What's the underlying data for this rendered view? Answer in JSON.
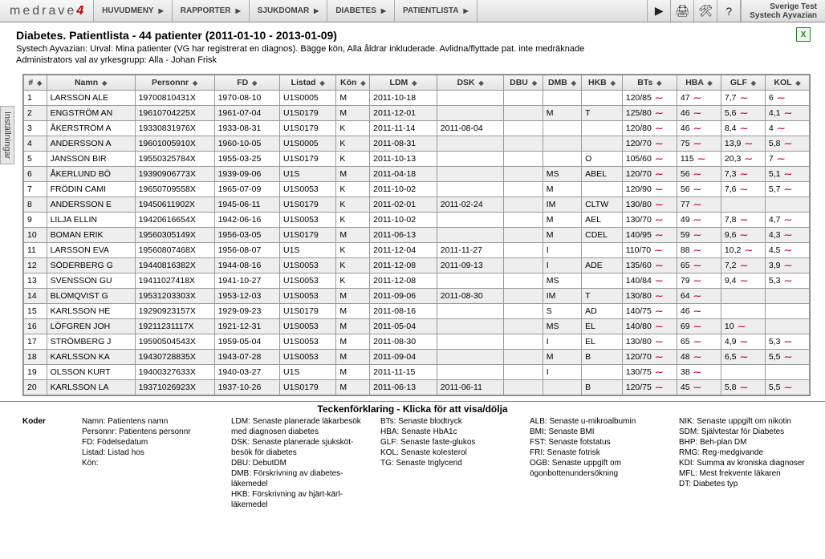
{
  "logo": {
    "text": "medrave",
    "suffix": "4"
  },
  "breadcrumbs": [
    "HUVUDMENY",
    "RAPPORTER",
    "SJUKDOMAR",
    "DIABETES",
    "PATIENTLISTA"
  ],
  "toolbar_icons": [
    {
      "name": "play-icon",
      "glyph": "▶"
    },
    {
      "name": "print-icon",
      "glyph": "🖨"
    },
    {
      "name": "settings-icon",
      "glyph": "🛠"
    },
    {
      "name": "help-icon",
      "glyph": "?"
    }
  ],
  "user": {
    "line1": "Sverige Test",
    "line2": "Systech Ayvazian"
  },
  "header": {
    "title": "Diabetes. Patientlista - 44 patienter (2011-01-10 - 2013-01-09)",
    "sub1": "Systech Ayvazian: Urval: Mina patienter (VG har registrerat en diagnos). Bägge kön, Alla åldrar inkluderade. Avlidna/flyttade pat. inte medräknade",
    "sub2": "Administrators val av yrkesgrupp: Alla - Johan Frisk"
  },
  "excel_label": "X",
  "sidetab": "Inställningar",
  "columns": [
    {
      "key": "num",
      "label": "#",
      "cls": "c-num"
    },
    {
      "key": "namn",
      "label": "Namn",
      "cls": "c-namn"
    },
    {
      "key": "personnr",
      "label": "Personnr",
      "cls": "c-pnr"
    },
    {
      "key": "fd",
      "label": "FD",
      "cls": "c-fd"
    },
    {
      "key": "listad",
      "label": "Listad",
      "cls": "c-listad"
    },
    {
      "key": "kon",
      "label": "Kön",
      "cls": "c-kon"
    },
    {
      "key": "ldm",
      "label": "LDM",
      "cls": "c-ldm"
    },
    {
      "key": "dsk",
      "label": "DSK",
      "cls": "c-dsk"
    },
    {
      "key": "dbu",
      "label": "DBU",
      "cls": "c-dbu"
    },
    {
      "key": "dmb",
      "label": "DMB",
      "cls": "c-dmb"
    },
    {
      "key": "hkb",
      "label": "HKB",
      "cls": "c-hkb"
    },
    {
      "key": "bts",
      "label": "BTs",
      "cls": "c-bts",
      "spark": true
    },
    {
      "key": "hba",
      "label": "HBA",
      "cls": "c-hba",
      "spark": true
    },
    {
      "key": "glf",
      "label": "GLF",
      "cls": "c-glf",
      "spark": true
    },
    {
      "key": "kol",
      "label": "KOL",
      "cls": "c-kol",
      "spark": true
    }
  ],
  "rows": [
    {
      "num": "1",
      "namn": "LARSSON ALE",
      "personnr": "19700810431X",
      "fd": "1970-08-10",
      "listad": "U1S0005",
      "kon": "M",
      "ldm": "2011-10-18",
      "dsk": "",
      "dbu": "",
      "dmb": "",
      "hkb": "",
      "bts": "120/85",
      "hba": "47",
      "glf": "7,7",
      "kol": "6"
    },
    {
      "num": "2",
      "namn": "ENGSTRÖM AN",
      "personnr": "19610704225X",
      "fd": "1961-07-04",
      "listad": "U1S0179",
      "kon": "M",
      "ldm": "2011-12-01",
      "dsk": "",
      "dbu": "",
      "dmb": "M",
      "hkb": "T",
      "bts": "125/80",
      "hba": "46",
      "glf": "5,6",
      "kol": "4,1"
    },
    {
      "num": "3",
      "namn": "ÅKERSTRÖM A",
      "personnr": "19330831976X",
      "fd": "1933-08-31",
      "listad": "U1S0179",
      "kon": "K",
      "ldm": "2011-11-14",
      "dsk": "2011-08-04",
      "dbu": "",
      "dmb": "",
      "hkb": "",
      "bts": "120/80",
      "hba": "46",
      "glf": "8,4",
      "kol": "4"
    },
    {
      "num": "4",
      "namn": "ANDERSSON A",
      "personnr": "19601005910X",
      "fd": "1960-10-05",
      "listad": "U1S0005",
      "kon": "K",
      "ldm": "2011-08-31",
      "dsk": "",
      "dbu": "",
      "dmb": "",
      "hkb": "",
      "bts": "120/70",
      "hba": "75",
      "glf": "13,9",
      "kol": "5,8"
    },
    {
      "num": "5",
      "namn": "JANSSON BIR",
      "personnr": "19550325784X",
      "fd": "1955-03-25",
      "listad": "U1S0179",
      "kon": "K",
      "ldm": "2011-10-13",
      "dsk": "",
      "dbu": "",
      "dmb": "",
      "hkb": "O",
      "bts": "105/60",
      "hba": "115",
      "glf": "20,3",
      "kol": "7"
    },
    {
      "num": "6",
      "namn": "ÅKERLUND BÖ",
      "personnr": "19390906773X",
      "fd": "1939-09-06",
      "listad": "U1S",
      "kon": "M",
      "ldm": "2011-04-18",
      "dsk": "",
      "dbu": "",
      "dmb": "MS",
      "hkb": "ABEL",
      "bts": "120/70",
      "hba": "56",
      "glf": "7,3",
      "kol": "5,1"
    },
    {
      "num": "7",
      "namn": "FRÖDIN CAMI",
      "personnr": "19650709558X",
      "fd": "1965-07-09",
      "listad": "U1S0053",
      "kon": "K",
      "ldm": "2011-10-02",
      "dsk": "",
      "dbu": "",
      "dmb": "M",
      "hkb": "",
      "bts": "120/90",
      "hba": "56",
      "glf": "7,6",
      "kol": "5,7"
    },
    {
      "num": "8",
      "namn": "ANDERSSON E",
      "personnr": "19450611902X",
      "fd": "1945-06-11",
      "listad": "U1S0179",
      "kon": "K",
      "ldm": "2011-02-01",
      "dsk": "2011-02-24",
      "dbu": "",
      "dmb": "IM",
      "hkb": "CLTW",
      "bts": "130/80",
      "hba": "77",
      "glf": "",
      "kol": ""
    },
    {
      "num": "9",
      "namn": "LILJA ELLIN",
      "personnr": "19420616654X",
      "fd": "1942-06-16",
      "listad": "U1S0053",
      "kon": "K",
      "ldm": "2011-10-02",
      "dsk": "",
      "dbu": "",
      "dmb": "M",
      "hkb": "AEL",
      "bts": "130/70",
      "hba": "49",
      "glf": "7,8",
      "kol": "4,7"
    },
    {
      "num": "10",
      "namn": "BOMAN ERIK",
      "personnr": "19560305149X",
      "fd": "1956-03-05",
      "listad": "U1S0179",
      "kon": "M",
      "ldm": "2011-06-13",
      "dsk": "",
      "dbu": "",
      "dmb": "M",
      "hkb": "CDEL",
      "bts": "140/95",
      "hba": "59",
      "glf": "9,6",
      "kol": "4,3"
    },
    {
      "num": "11",
      "namn": "LARSSON EVA",
      "personnr": "19560807468X",
      "fd": "1956-08-07",
      "listad": "U1S",
      "kon": "K",
      "ldm": "2011-12-04",
      "dsk": "2011-11-27",
      "dbu": "",
      "dmb": "I",
      "hkb": "",
      "bts": "110/70",
      "hba": "88",
      "glf": "10,2",
      "kol": "4,5"
    },
    {
      "num": "12",
      "namn": "SÖDERBERG G",
      "personnr": "19440816382X",
      "fd": "1944-08-16",
      "listad": "U1S0053",
      "kon": "K",
      "ldm": "2011-12-08",
      "dsk": "2011-09-13",
      "dbu": "",
      "dmb": "I",
      "hkb": "ADE",
      "bts": "135/60",
      "hba": "65",
      "glf": "7,2",
      "kol": "3,9"
    },
    {
      "num": "13",
      "namn": "SVENSSON GU",
      "personnr": "19411027418X",
      "fd": "1941-10-27",
      "listad": "U1S0053",
      "kon": "K",
      "ldm": "2011-12-08",
      "dsk": "",
      "dbu": "",
      "dmb": "MS",
      "hkb": "",
      "bts": "140/84",
      "hba": "79",
      "glf": "9,4",
      "kol": "5,3"
    },
    {
      "num": "14",
      "namn": "BLOMQVIST G",
      "personnr": "19531203303X",
      "fd": "1953-12-03",
      "listad": "U1S0053",
      "kon": "M",
      "ldm": "2011-09-06",
      "dsk": "2011-08-30",
      "dbu": "",
      "dmb": "IM",
      "hkb": "T",
      "bts": "130/80",
      "hba": "64",
      "glf": "",
      "kol": ""
    },
    {
      "num": "15",
      "namn": "KARLSSON HE",
      "personnr": "19290923157X",
      "fd": "1929-09-23",
      "listad": "U1S0179",
      "kon": "M",
      "ldm": "2011-08-16",
      "dsk": "",
      "dbu": "",
      "dmb": "S",
      "hkb": "AD",
      "bts": "140/75",
      "hba": "46",
      "glf": "",
      "kol": ""
    },
    {
      "num": "16",
      "namn": "LÖFGREN JOH",
      "personnr": "19211231117X",
      "fd": "1921-12-31",
      "listad": "U1S0053",
      "kon": "M",
      "ldm": "2011-05-04",
      "dsk": "",
      "dbu": "",
      "dmb": "MS",
      "hkb": "EL",
      "bts": "140/80",
      "hba": "69",
      "glf": "10",
      "kol": ""
    },
    {
      "num": "17",
      "namn": "STRÖMBERG J",
      "personnr": "19590504543X",
      "fd": "1959-05-04",
      "listad": "U1S0053",
      "kon": "M",
      "ldm": "2011-08-30",
      "dsk": "",
      "dbu": "",
      "dmb": "I",
      "hkb": "EL",
      "bts": "130/80",
      "hba": "65",
      "glf": "4,9",
      "kol": "5,3"
    },
    {
      "num": "18",
      "namn": "KARLSSON KA",
      "personnr": "19430728835X",
      "fd": "1943-07-28",
      "listad": "U1S0053",
      "kon": "M",
      "ldm": "2011-09-04",
      "dsk": "",
      "dbu": "",
      "dmb": "M",
      "hkb": "B",
      "bts": "120/70",
      "hba": "48",
      "glf": "6,5",
      "kol": "5,5"
    },
    {
      "num": "19",
      "namn": "OLSSON KURT",
      "personnr": "19400327633X",
      "fd": "1940-03-27",
      "listad": "U1S",
      "kon": "M",
      "ldm": "2011-11-15",
      "dsk": "",
      "dbu": "",
      "dmb": "I",
      "hkb": "",
      "bts": "130/75",
      "hba": "38",
      "glf": "",
      "kol": ""
    },
    {
      "num": "20",
      "namn": "KARLSSON LA",
      "personnr": "19371026923X",
      "fd": "1937-10-26",
      "listad": "U1S0179",
      "kon": "M",
      "ldm": "2011-06-13",
      "dsk": "2011-06-11",
      "dbu": "",
      "dmb": "",
      "hkb": "B",
      "bts": "120/75",
      "hba": "45",
      "glf": "5,8",
      "kol": "5,5"
    }
  ],
  "legend_title": "Teckenförklaring - Klicka för att visa/dölja",
  "legend_label": "Koder",
  "legend_cols": [
    [
      "Namn: Patientens namn",
      "Personnr: Patientens personnr",
      "FD: Födelsedatum",
      "Listad: Listad hos",
      "Kön:"
    ],
    [
      "LDM: Senaste planerade läkarbesök med diagnosen diabetes",
      "DSK: Senaste planerade sjuksköt-besök för diabetes",
      "DBU: DebutDM",
      "DMB: Förskrivning av diabetes-läkemedel",
      "HKB: Förskrivning av hjärt-kärl-läkemedel"
    ],
    [
      "BTs: Senaste blodtryck",
      "HBA: Senaste HbA1c",
      "GLF: Senaste faste-glukos",
      "KOL: Senaste kolesterol",
      "TG: Senaste triglycerid"
    ],
    [
      "ALB: Senaste u-mikroalbumin",
      "BMI: Senaste BMI",
      "FST: Senaste fotstatus",
      "FRI: Senaste fotrisk",
      "OGB: Senaste uppgift om ögonbottenundersökning"
    ],
    [
      "NIK: Senaste uppgift om nikotin",
      "SDM: Självtestar för Diabetes",
      "BHP: Beh-plan DM",
      "RMG: Reg-medgivande",
      "KDI: Summa av kroniska diagnoser",
      "MFL: Mest frekvente läkaren",
      "DT: Diabetes typ"
    ]
  ]
}
